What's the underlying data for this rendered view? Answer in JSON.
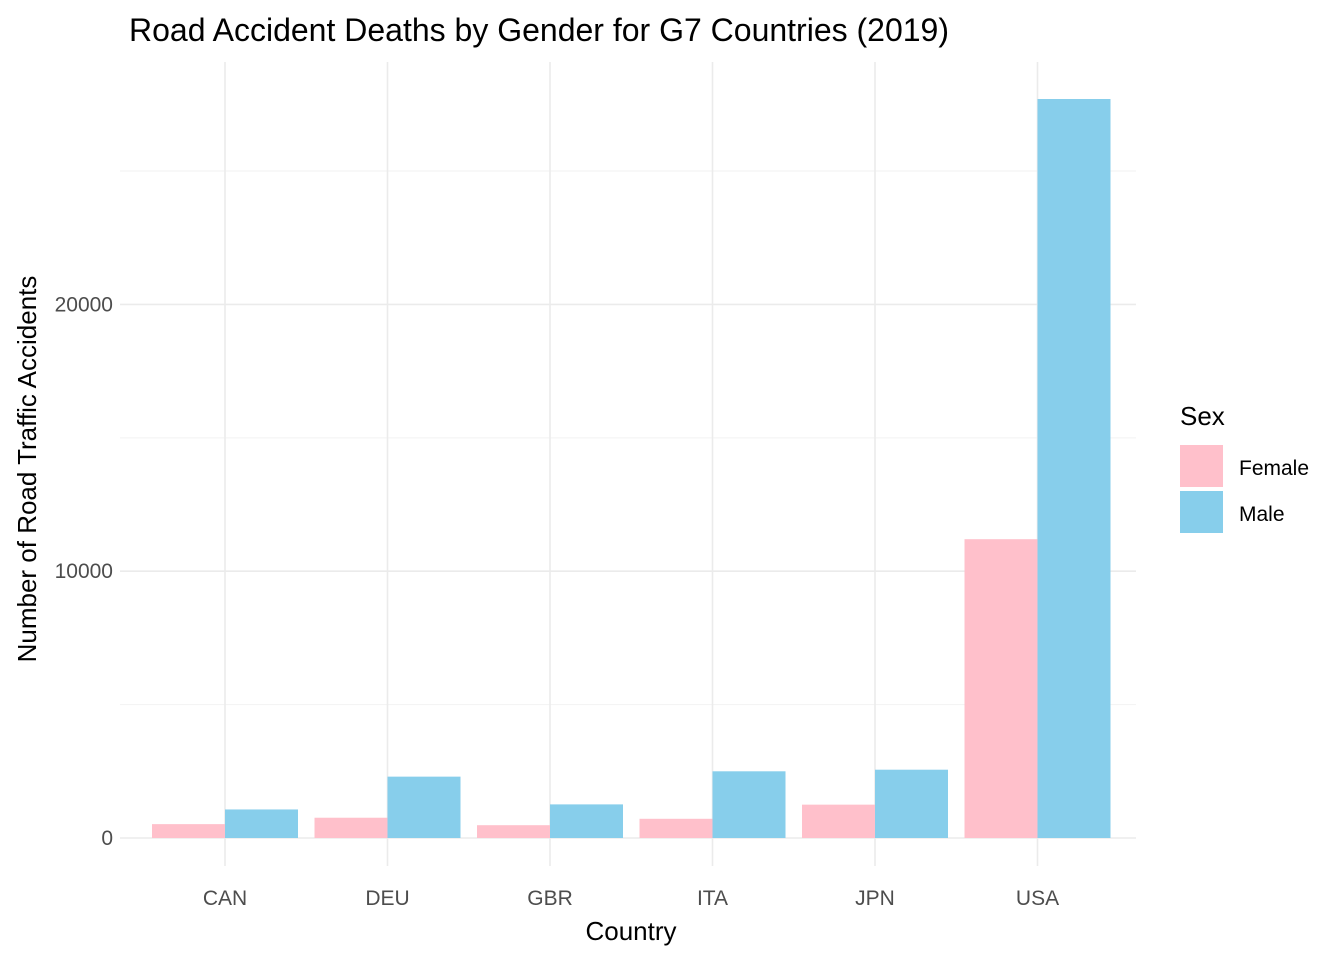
{
  "chart_data": {
    "type": "bar",
    "title": "Road Accident Deaths by Gender for G7 Countries (2019)",
    "xlabel": "Country",
    "ylabel": "Number of Road Traffic Accidents",
    "categories": [
      "CAN",
      "DEU",
      "GBR",
      "ITA",
      "JPN",
      "USA"
    ],
    "series": [
      {
        "name": "Female",
        "color": "#ffc0cb",
        "values": [
          520,
          760,
          480,
          720,
          1250,
          11200
        ]
      },
      {
        "name": "Male",
        "color": "#87ceeb",
        "values": [
          1070,
          2300,
          1260,
          2500,
          2560,
          27700
        ]
      }
    ],
    "ylim": [
      0,
      28700
    ],
    "yticks": [
      0,
      10000,
      20000
    ],
    "yticks_minor": [
      5000,
      15000,
      25000
    ],
    "grid": true,
    "legend": {
      "title": "Sex",
      "position": "right"
    }
  }
}
